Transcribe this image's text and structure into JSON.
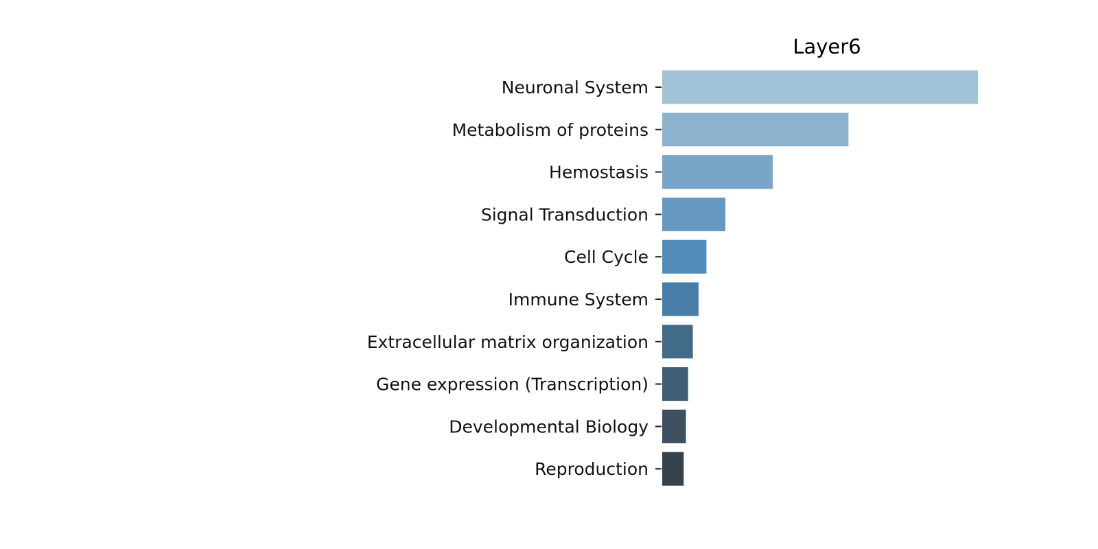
{
  "chart_data": {
    "type": "bar",
    "orientation": "horizontal",
    "title": "Layer6",
    "xlabel": "",
    "ylabel": "",
    "categories": [
      "Neuronal System",
      "Metabolism of proteins",
      "Hemostasis",
      "Signal Transduction",
      "Cell Cycle",
      "Immune System",
      "Extracellular matrix organization",
      "Gene expression (Transcription)",
      "Developmental Biology",
      "Reproduction"
    ],
    "values": [
      1.0,
      0.59,
      0.35,
      0.2,
      0.14,
      0.115,
      0.097,
      0.082,
      0.075,
      0.068
    ],
    "xlim": [
      0,
      1.0
    ],
    "grid": false,
    "x_axis_visible": false,
    "colors": [
      "#a0c1d6",
      "#8cb2cd",
      "#79a6c6",
      "#6699bf",
      "#528bb7",
      "#477ea8",
      "#426b8a",
      "#3f5d75",
      "#3d4f61",
      "#37434c"
    ]
  }
}
